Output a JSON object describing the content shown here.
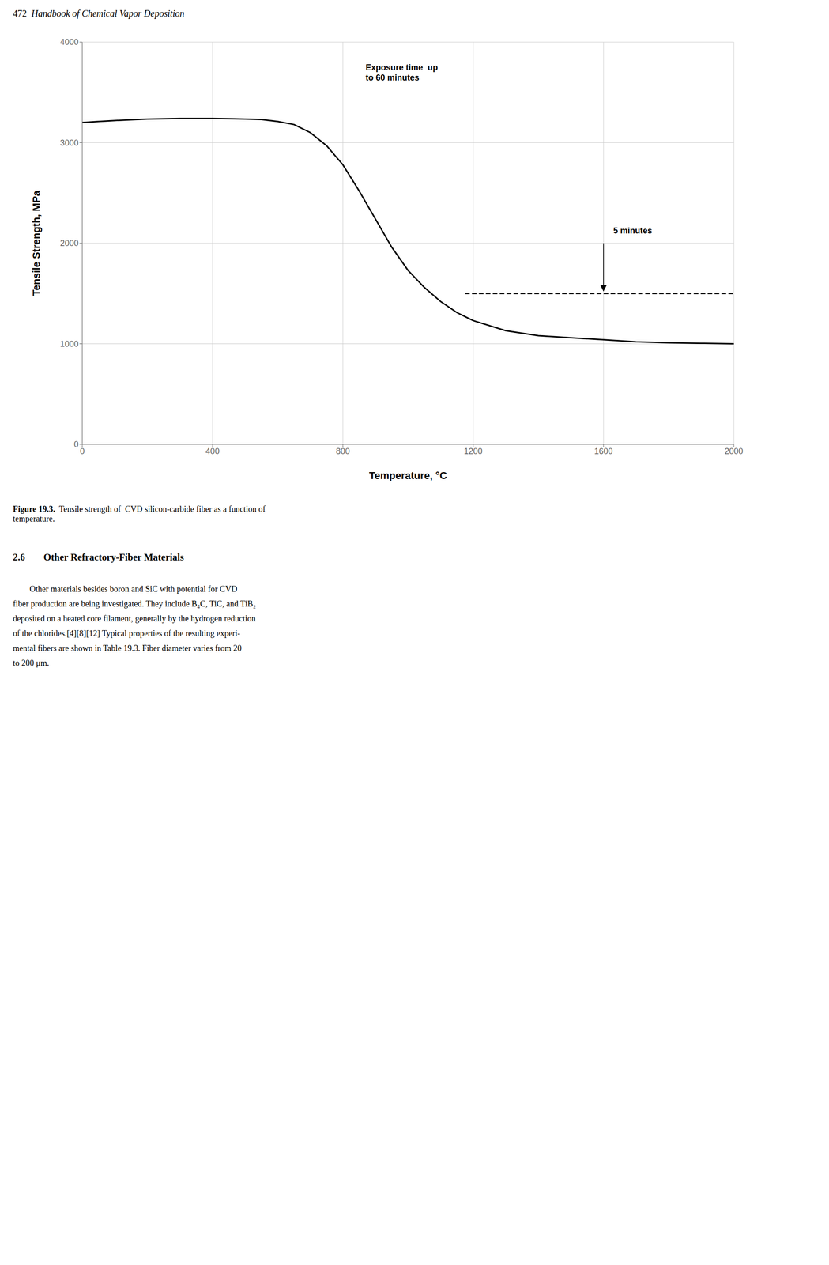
{
  "chart_data": {
    "type": "line",
    "x_label": "Temperature, °C",
    "y_label": "Tensile Strength, MPa",
    "xlim": [
      0,
      2000
    ],
    "ylim": [
      0,
      4000
    ],
    "xticks": [
      0,
      400,
      800,
      1200,
      1600,
      2000
    ],
    "yticks": [
      0,
      1000,
      2000,
      3000,
      4000
    ],
    "grid": true,
    "series": [
      {
        "color": "#000000",
        "line_style": "solid",
        "x": [
          0,
          50,
          100,
          200,
          300,
          400,
          500,
          550,
          600,
          650,
          700,
          750,
          800,
          850,
          900,
          950,
          1000,
          1050,
          1100,
          1150,
          1200,
          1300,
          1400,
          1500,
          1600,
          1700,
          1800,
          1900,
          2000
        ],
        "values": [
          3200,
          3210,
          3220,
          3235,
          3240,
          3240,
          3235,
          3230,
          3210,
          3180,
          3100,
          2970,
          2780,
          2520,
          2240,
          1960,
          1730,
          1560,
          1420,
          1310,
          1230,
          1130,
          1080,
          1060,
          1040,
          1020,
          1010,
          1005,
          1000
        ]
      },
      {
        "color": "#000000",
        "line_style": "dashed",
        "x": [
          1175,
          2000
        ],
        "values": [
          1500,
          1500
        ]
      }
    ],
    "annotations": [
      {
        "text": "Exposure time  up\nto 60 minutes",
        "x": 870,
        "y": 3600
      },
      {
        "text": "5 minutes",
        "x": 1630,
        "y": 2080
      }
    ],
    "arrows": [
      {
        "x": 1600,
        "y_start": 2000,
        "y_end": 1520
      }
    ]
  },
  "page": {
    "header_num": "472",
    "header_text": "  Handbook of Chemical Vapor Deposition",
    "caption_bold": "Figure 19.3.",
    "caption_normal": "  Tensile strength of  CVD silicon-carbide fiber as a function of\ntemperature.",
    "section_num": "2.6",
    "section_title": "Other Refractory-Fiber Materials",
    "body_lines": [
      "Other materials besides boron and SiC with potential for CVD",
      "fiber production are being investigated. They include B₄C, TiC, and TiB₂",
      "deposited on a heated core filament, generally by the hydrogen reduction",
      "of the chlorides.[4][8][12] Typical properties of the resulting experi-",
      "mental fibers are shown in Table 19.3. Fiber diameter varies from 20",
      "to 200 μm."
    ]
  }
}
